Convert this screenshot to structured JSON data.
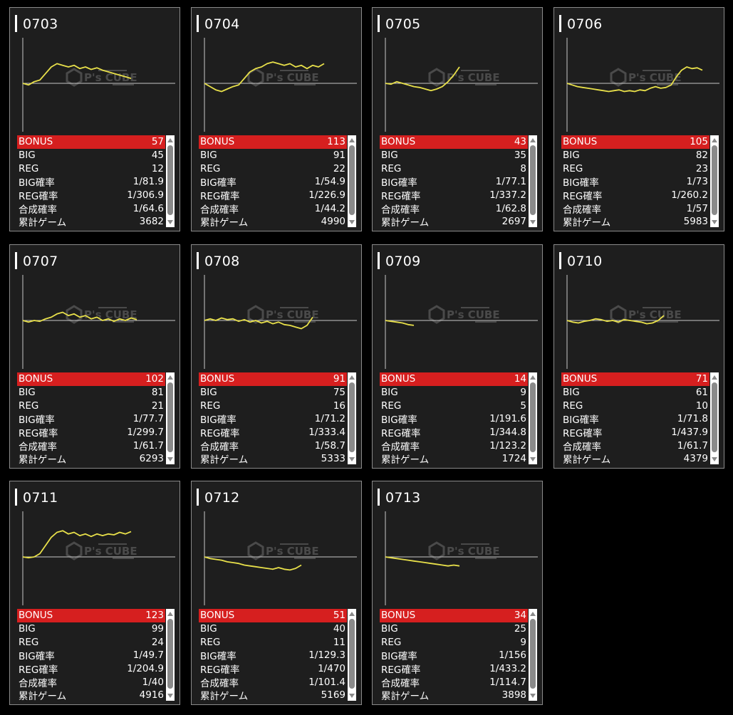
{
  "stats_labels": [
    "BONUS",
    "BIG",
    "REG",
    "BIG確率",
    "REG確率",
    "合成確率",
    "累計ゲーム"
  ],
  "watermark": {
    "brand": "P's CUBE"
  },
  "colors": {
    "line": "#e8e04a",
    "bonus_bg": "#d61f1f",
    "card_bg": "#1e1e1e",
    "axis": "#c8c8c8"
  },
  "machines": [
    {
      "id": "0703",
      "bonus": "57",
      "big": "45",
      "reg": "12",
      "big_rate": "1/81.9",
      "reg_rate": "1/306.9",
      "combined_rate": "1/64.6",
      "total_games": "3682",
      "graph": [
        0,
        -2,
        2,
        4,
        12,
        20,
        24,
        22,
        20,
        22,
        18,
        20,
        17,
        19,
        16,
        14,
        12,
        10,
        8,
        6
      ]
    },
    {
      "id": "0704",
      "bonus": "113",
      "big": "91",
      "reg": "22",
      "big_rate": "1/54.9",
      "reg_rate": "1/226.9",
      "combined_rate": "1/44.2",
      "total_games": "4990",
      "graph": [
        0,
        -4,
        -8,
        -10,
        -7,
        -4,
        -2,
        6,
        14,
        18,
        20,
        24,
        26,
        24,
        22,
        24,
        20,
        22,
        18,
        22,
        20,
        24
      ]
    },
    {
      "id": "0705",
      "bonus": "43",
      "big": "35",
      "reg": "8",
      "big_rate": "1/77.1",
      "reg_rate": "1/337.2",
      "combined_rate": "1/62.8",
      "total_games": "2697",
      "graph": [
        0,
        -1,
        2,
        0,
        -2,
        -4,
        -5,
        -7,
        -9,
        -7,
        -4,
        2,
        10,
        20
      ]
    },
    {
      "id": "0706",
      "bonus": "105",
      "big": "82",
      "reg": "23",
      "big_rate": "1/73",
      "reg_rate": "1/260.2",
      "combined_rate": "1/57",
      "total_games": "5983",
      "graph": [
        0,
        -2,
        -4,
        -5,
        -6,
        -7,
        -8,
        -9,
        -10,
        -9,
        -8,
        -10,
        -9,
        -10,
        -8,
        -9,
        -6,
        -4,
        -6,
        -5,
        -2,
        8,
        16,
        20,
        18,
        19,
        16
      ]
    },
    {
      "id": "0707",
      "bonus": "102",
      "big": "81",
      "reg": "21",
      "big_rate": "1/77.7",
      "reg_rate": "1/299.7",
      "combined_rate": "1/61.7",
      "total_games": "6293",
      "graph": [
        0,
        -2,
        0,
        -1,
        2,
        4,
        8,
        10,
        6,
        8,
        4,
        6,
        2,
        4,
        0,
        2,
        -1,
        2,
        0,
        3,
        1
      ]
    },
    {
      "id": "0708",
      "bonus": "91",
      "big": "75",
      "reg": "16",
      "big_rate": "1/71.2",
      "reg_rate": "1/333.4",
      "combined_rate": "1/58.7",
      "total_games": "5333",
      "graph": [
        0,
        2,
        0,
        3,
        1,
        2,
        -1,
        1,
        -2,
        0,
        -3,
        -1,
        -4,
        -2,
        -5,
        -6,
        -8,
        -10,
        -6,
        4
      ]
    },
    {
      "id": "0709",
      "bonus": "14",
      "big": "9",
      "reg": "5",
      "big_rate": "1/191.6",
      "reg_rate": "1/344.8",
      "combined_rate": "1/123.2",
      "total_games": "1724",
      "graph": [
        0,
        -1,
        -2,
        -3,
        -5,
        -6
      ]
    },
    {
      "id": "0710",
      "bonus": "71",
      "big": "61",
      "reg": "10",
      "big_rate": "1/71.8",
      "reg_rate": "1/437.9",
      "combined_rate": "1/61.7",
      "total_games": "4379",
      "graph": [
        0,
        -2,
        -3,
        -1,
        0,
        2,
        1,
        -1,
        0,
        -2,
        1,
        0,
        -1,
        -2,
        -4,
        -3,
        0,
        6
      ]
    },
    {
      "id": "0711",
      "bonus": "123",
      "big": "99",
      "reg": "24",
      "big_rate": "1/49.7",
      "reg_rate": "1/204.9",
      "combined_rate": "1/40",
      "total_games": "4916",
      "graph": [
        0,
        -1,
        0,
        4,
        14,
        24,
        30,
        32,
        28,
        30,
        26,
        28,
        25,
        28,
        26,
        28,
        27,
        30,
        28,
        31
      ]
    },
    {
      "id": "0712",
      "bonus": "51",
      "big": "40",
      "reg": "11",
      "big_rate": "1/129.3",
      "reg_rate": "1/470",
      "combined_rate": "1/101.4",
      "total_games": "5169",
      "graph": [
        0,
        -2,
        -3,
        -4,
        -6,
        -7,
        -8,
        -10,
        -11,
        -12,
        -13,
        -14,
        -15,
        -13,
        -15,
        -16,
        -14,
        -10
      ]
    },
    {
      "id": "0713",
      "bonus": "34",
      "big": "25",
      "reg": "9",
      "big_rate": "1/156",
      "reg_rate": "1/433.2",
      "combined_rate": "1/114.7",
      "total_games": "3898",
      "graph": [
        0,
        -1,
        -2,
        -3,
        -4,
        -5,
        -6,
        -7,
        -8,
        -9,
        -10,
        -11,
        -10,
        -11
      ]
    }
  ]
}
